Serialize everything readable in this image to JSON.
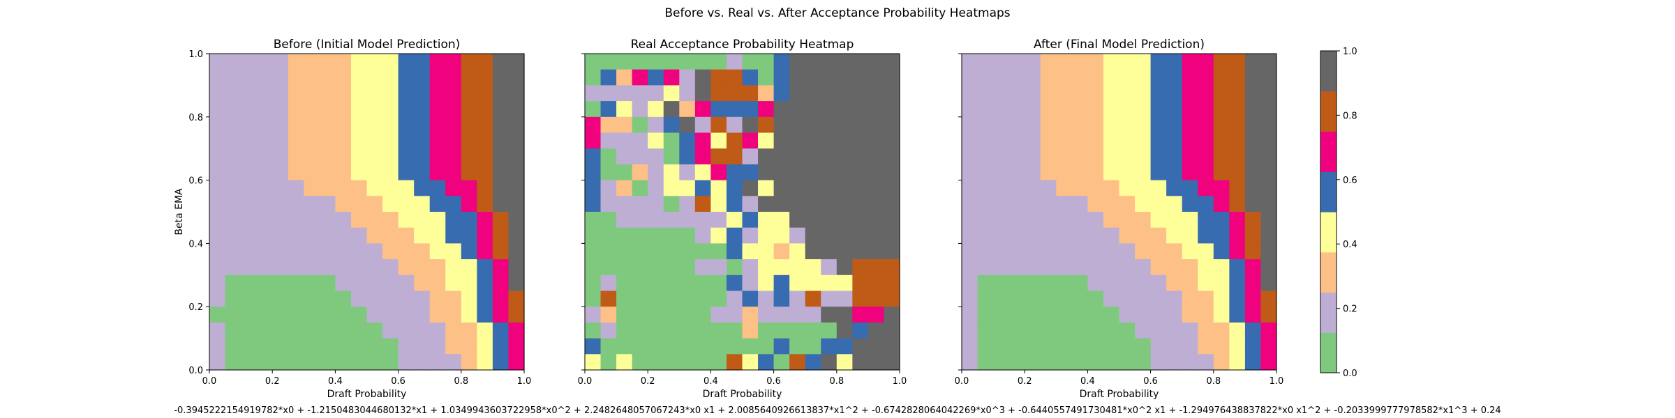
{
  "figure": {
    "suptitle": "Before vs. Real vs. After Acceptance Probability Heatmaps",
    "formula": "-0.3945222154919782*x0 + -1.2150483044680132*x1 + 1.0349943603722958*x0^2 + 2.2482648057067243*x0 x1 + 2.0085640926613837*x1^2 + -0.6742828064042269*x0^3 + -0.6440557491730481*x0^2 x1 + -1.294976438837822*x0 x1^2 + -0.2033999777978582*x1^3 + 0.24"
  },
  "colorbar": {
    "ticks": [
      "0.0",
      "0.2",
      "0.4",
      "0.6",
      "0.8",
      "1.0"
    ],
    "colors": [
      "#7fc97f",
      "#beaed4",
      "#fdc086",
      "#ffff99",
      "#386cb0",
      "#f0027f",
      "#bf5b17",
      "#666666"
    ]
  },
  "axes_text": {
    "xlabel": "Draft Probability",
    "ylabel": "Beta EMA",
    "ticks": [
      "0.0",
      "0.2",
      "0.4",
      "0.6",
      "0.8",
      "1.0"
    ]
  },
  "chart_data": [
    {
      "type": "heatmap",
      "title": "Before (Initial Model Prediction)",
      "xlabel": "Draft Probability",
      "ylabel": "Beta EMA",
      "xlim": [
        0,
        1
      ],
      "ylim": [
        0,
        1
      ],
      "vmin": 0,
      "vmax": 1,
      "grid": "20x20 bins, rows listed from top (Beta EMA = 1.0) to bottom (0.0); cell value = color class 0-7 of an 8-color Accent scale over 0..1",
      "rows": [
        "11111222233344556677",
        "11111222233344556677",
        "11111222233344556677",
        "11111222233344556677",
        "11111222233344556677",
        "11111222233344556677",
        "11111222233344556677",
        "11111222233344556677",
        "11111122223334455677",
        "11111111222333445677",
        "11111111122233344567",
        "11111111112223344567",
        "11111111111222334567",
        "11111111111122233457",
        "10000000111112233457",
        "10000000011111223456",
        "00000000001111223456",
        "10000000000111122345",
        "10000000000011122345",
        "10000000000011112345"
      ]
    },
    {
      "type": "heatmap",
      "title": "Real Acceptance Probability Heatmap",
      "xlabel": "Draft Probability",
      "xlim": [
        0,
        1
      ],
      "ylim": [
        0,
        1
      ],
      "vmin": 0,
      "vmax": 1,
      "grid": "20x20 bins, rows listed from top to bottom; approximate reading",
      "rows": [
        "00000000010047777777",
        "04254517664047777777",
        "11111317666247777777",
        "04313725444577777777",
        "52201471617677777777",
        "51113045365377777777",
        "40111045661777777777",
        "40021313544777777777",
        "41201334347377777777",
        "41111016341777777777",
        "00111111134337777777",
        "00000001341331777777",
        "00000000043323777777",
        "00000001101333317666",
        "01000000041343333666",
        "06000000014141611666",
        "12000000112111177557",
        "01000000002000007477",
        "40000000000040044777",
        "30300000063406473777"
      ]
    },
    {
      "type": "heatmap",
      "title": "After (Final Model Prediction)",
      "xlabel": "Draft Probability",
      "xlim": [
        0,
        1
      ],
      "ylim": [
        0,
        1
      ],
      "vmin": 0,
      "vmax": 1,
      "grid": "20x20 bins, rows listed from top to bottom; approximate reading",
      "rows": [
        "11111222233344556677",
        "11111222233344556677",
        "11111222233344556677",
        "11111222233344556677",
        "11111222233344556677",
        "11111222233344556677",
        "11111222233344556677",
        "11111222233344556677",
        "11111122223334455677",
        "11111111222333445677",
        "11111111122233344567",
        "11111111112223344567",
        "11111111111222334567",
        "11111111111122233457",
        "10000000111112233457",
        "10000000011111223456",
        "10000000001111223456",
        "10000000000111122345",
        "10000000000011122345",
        "10000000000011112345"
      ]
    }
  ]
}
